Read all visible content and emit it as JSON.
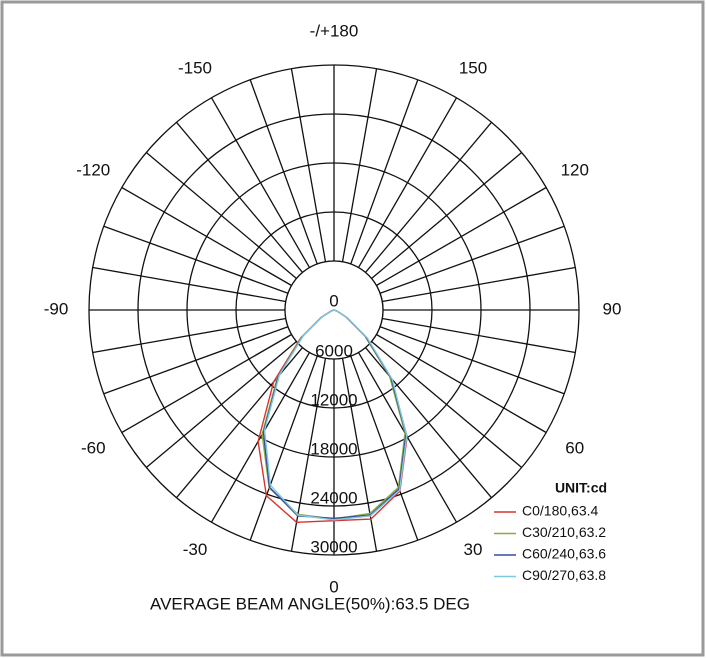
{
  "chart_data": {
    "type": "polar",
    "title": "AVERAGE BEAM ANGLE(50%):63.5 DEG",
    "unit_label": "UNIT:cd",
    "rlim": [
      0,
      30000
    ],
    "rticks": [
      0,
      6000,
      12000,
      18000,
      24000,
      30000
    ],
    "angle_ticks": [
      {
        "value": 180,
        "label": "-/+180"
      },
      150,
      120,
      90,
      60,
      30,
      0,
      -30,
      -60,
      -90,
      -120,
      -150
    ],
    "angle_grid_step": 10,
    "x": [
      -90,
      -80,
      -70,
      -60,
      -50,
      -40,
      -30,
      -20,
      -10,
      0,
      10,
      20,
      30,
      40,
      50,
      60,
      70,
      80,
      90
    ],
    "series": [
      {
        "name": "C0/180,63.4",
        "color": "#d9342b",
        "values": [
          0,
          30,
          380,
          1700,
          5300,
          11500,
          18600,
          24200,
          26400,
          25800,
          26000,
          23600,
          17900,
          10900,
          5000,
          1700,
          390,
          40,
          0
        ]
      },
      {
        "name": "C30/210,63.2",
        "color": "#8aac3e",
        "values": [
          0,
          40,
          420,
          1900,
          5200,
          10800,
          17600,
          23200,
          25400,
          25600,
          25300,
          23100,
          17400,
          10600,
          4900,
          1800,
          410,
          40,
          0
        ]
      },
      {
        "name": "C60/240,63.6",
        "color": "#3a4c9e",
        "values": [
          0,
          40,
          400,
          1800,
          5000,
          10600,
          17300,
          23100,
          25600,
          25500,
          25500,
          23300,
          17600,
          10900,
          5100,
          1800,
          400,
          40,
          0
        ]
      },
      {
        "name": "C90/270,63.8",
        "color": "#80c8de",
        "values": [
          0,
          40,
          400,
          1700,
          4900,
          10400,
          17000,
          22800,
          25500,
          25700,
          25600,
          23500,
          17800,
          11100,
          5300,
          1900,
          420,
          40,
          0
        ]
      }
    ]
  }
}
